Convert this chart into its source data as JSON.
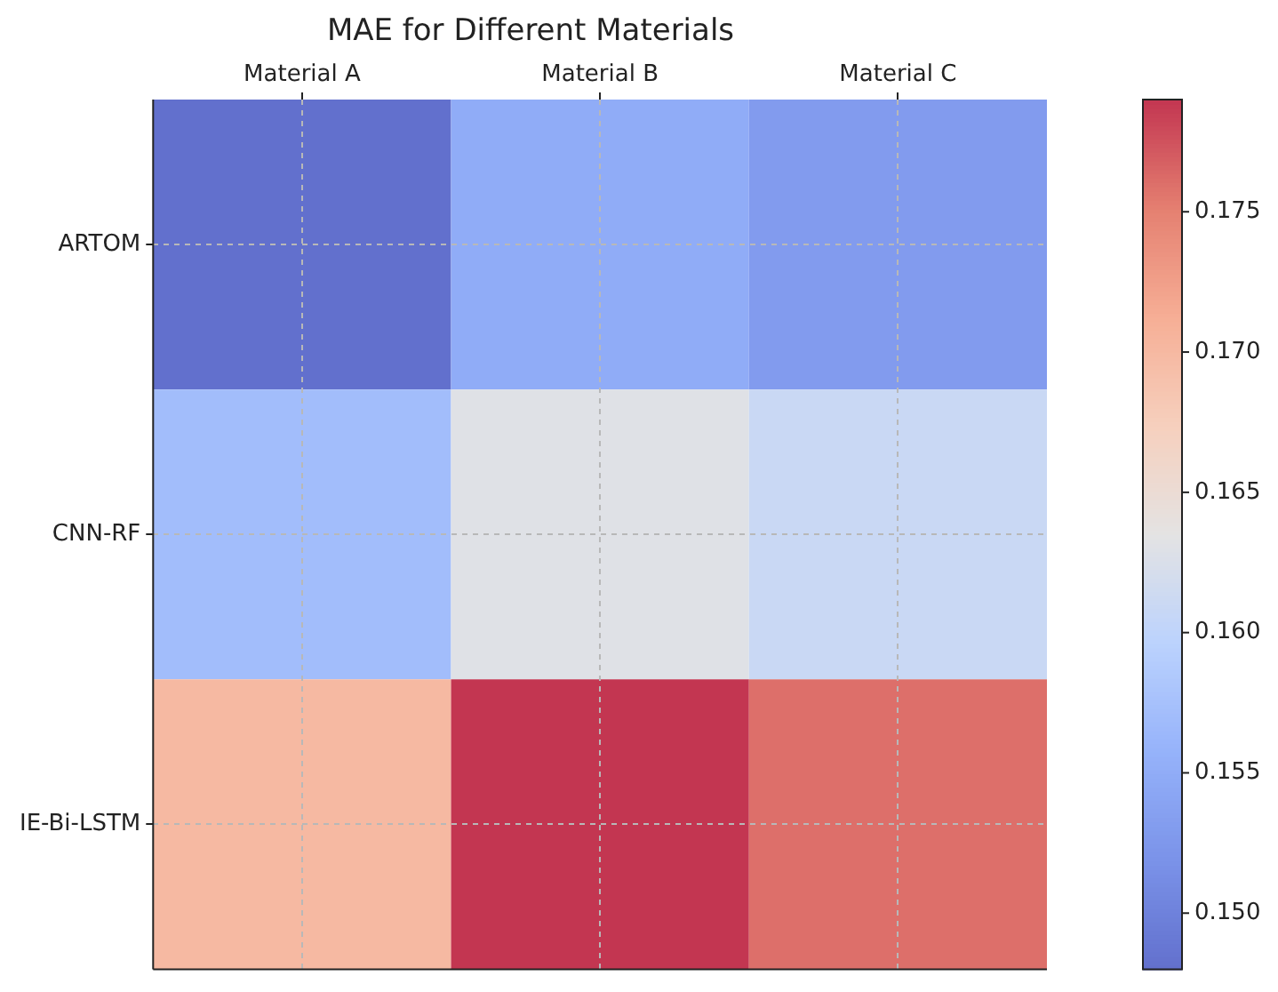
{
  "chart_data": {
    "type": "heatmap",
    "title": "MAE for Different Materials",
    "categories": [
      "Material A",
      "Material B",
      "Material C"
    ],
    "y_categories": [
      "ARTOM",
      "CNN-RF",
      "IE-Bi-LSTM"
    ],
    "cells": [
      [
        0.148,
        0.155,
        0.153
      ],
      [
        0.157,
        0.163,
        0.161
      ],
      [
        0.17,
        0.179,
        0.176
      ]
    ],
    "clim": [
      0.148,
      0.179
    ],
    "cticks": [
      {
        "value": 0.15,
        "label": "0.150"
      },
      0.155,
      {
        "value": 0.16,
        "label": "0.160"
      },
      0.165,
      {
        "value": 0.17,
        "label": "0.170"
      },
      0.175
    ],
    "grid": true
  }
}
